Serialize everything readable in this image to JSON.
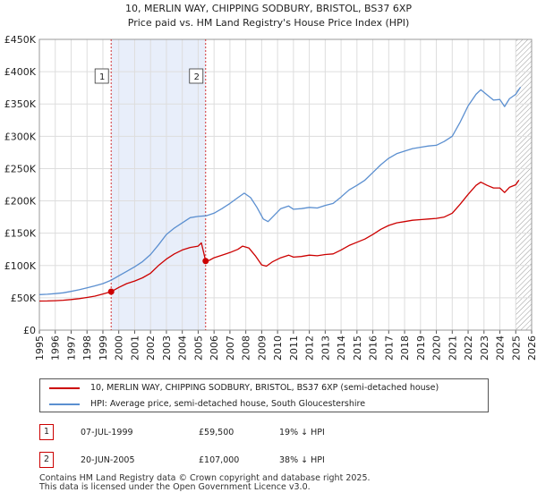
{
  "chart_data": {
    "type": "line",
    "title": "10, MERLIN WAY, CHIPPING SODBURY, BRISTOL, BS37 6XP",
    "subtitle": "Price paid vs. HM Land Registry's House Price Index (HPI)",
    "xlim": [
      1995,
      2026
    ],
    "ylim": [
      0,
      450000
    ],
    "x_ticks": [
      "1995",
      "1996",
      "1997",
      "1998",
      "1999",
      "2000",
      "2001",
      "2002",
      "2003",
      "2004",
      "2005",
      "2006",
      "2007",
      "2008",
      "2009",
      "2010",
      "2011",
      "2012",
      "2013",
      "2014",
      "2015",
      "2016",
      "2017",
      "2018",
      "2019",
      "2020",
      "2021",
      "2022",
      "2023",
      "2024",
      "2025",
      "2026"
    ],
    "y_ticks": [
      {
        "value": 0,
        "label": "£0"
      },
      {
        "value": 50000,
        "label": "£50K"
      },
      {
        "value": 100000,
        "label": "£100K"
      },
      {
        "value": 150000,
        "label": "£150K"
      },
      {
        "value": 200000,
        "label": "£200K"
      },
      {
        "value": 250000,
        "label": "£250K"
      },
      {
        "value": 300000,
        "label": "£300K"
      },
      {
        "value": 350000,
        "label": "£350K"
      },
      {
        "value": 400000,
        "label": "£400K"
      },
      {
        "value": 450000,
        "label": "£450K"
      }
    ],
    "grid": true,
    "shaded_range": [
      1999.52,
      2005.47
    ],
    "future_hatch_from": 2025.0,
    "series": [
      {
        "name": "10, MERLIN WAY, CHIPPING SODBURY, BRISTOL, BS37 6XP (semi-detached house)",
        "color": "#cc0000",
        "points": [
          [
            1995.0,
            45000
          ],
          [
            1995.5,
            45200
          ],
          [
            1996.0,
            45500
          ],
          [
            1996.5,
            46300
          ],
          [
            1997.0,
            47300
          ],
          [
            1997.5,
            48700
          ],
          [
            1998.0,
            50500
          ],
          [
            1998.5,
            52600
          ],
          [
            1999.0,
            56000
          ],
          [
            1999.52,
            59500
          ],
          [
            2000.0,
            66000
          ],
          [
            2000.5,
            72000
          ],
          [
            2001.0,
            76000
          ],
          [
            2001.5,
            81000
          ],
          [
            2002.0,
            88000
          ],
          [
            2002.5,
            100000
          ],
          [
            2003.0,
            110000
          ],
          [
            2003.5,
            118000
          ],
          [
            2004.0,
            124000
          ],
          [
            2004.5,
            128000
          ],
          [
            2005.0,
            130000
          ],
          [
            2005.2,
            135000
          ],
          [
            2005.47,
            107000
          ],
          [
            2005.7,
            108000
          ],
          [
            2006.0,
            112000
          ],
          [
            2006.5,
            116000
          ],
          [
            2007.0,
            120000
          ],
          [
            2007.5,
            125000
          ],
          [
            2007.8,
            130000
          ],
          [
            2008.2,
            127000
          ],
          [
            2008.6,
            115000
          ],
          [
            2009.0,
            101000
          ],
          [
            2009.3,
            99000
          ],
          [
            2009.7,
            106000
          ],
          [
            2010.2,
            112000
          ],
          [
            2010.7,
            116000
          ],
          [
            2011.0,
            113000
          ],
          [
            2011.5,
            114000
          ],
          [
            2012.0,
            116000
          ],
          [
            2012.5,
            115000
          ],
          [
            2013.0,
            117000
          ],
          [
            2013.5,
            118000
          ],
          [
            2014.0,
            124000
          ],
          [
            2014.5,
            131000
          ],
          [
            2015.0,
            136000
          ],
          [
            2015.5,
            141000
          ],
          [
            2016.0,
            148000
          ],
          [
            2016.5,
            156000
          ],
          [
            2017.0,
            162000
          ],
          [
            2017.5,
            166000
          ],
          [
            2018.0,
            168000
          ],
          [
            2018.5,
            170000
          ],
          [
            2019.0,
            171000
          ],
          [
            2019.5,
            172000
          ],
          [
            2020.0,
            173000
          ],
          [
            2020.5,
            175000
          ],
          [
            2021.0,
            181000
          ],
          [
            2021.5,
            195000
          ],
          [
            2022.0,
            210000
          ],
          [
            2022.5,
            224000
          ],
          [
            2022.8,
            229000
          ],
          [
            2023.2,
            224000
          ],
          [
            2023.6,
            220000
          ],
          [
            2024.0,
            220000
          ],
          [
            2024.3,
            213000
          ],
          [
            2024.6,
            221000
          ],
          [
            2025.0,
            225000
          ],
          [
            2025.2,
            232000
          ]
        ]
      },
      {
        "name": "HPI: Average price, semi-detached house, South Gloucestershire",
        "color": "#5b8fd0",
        "points": [
          [
            1995.0,
            55000
          ],
          [
            1995.5,
            55500
          ],
          [
            1996.0,
            56500
          ],
          [
            1996.5,
            57800
          ],
          [
            1997.0,
            60000
          ],
          [
            1997.5,
            62500
          ],
          [
            1998.0,
            65500
          ],
          [
            1998.5,
            68500
          ],
          [
            1999.0,
            72000
          ],
          [
            1999.5,
            77000
          ],
          [
            2000.0,
            84000
          ],
          [
            2000.5,
            91000
          ],
          [
            2001.0,
            98000
          ],
          [
            2001.5,
            106000
          ],
          [
            2002.0,
            117000
          ],
          [
            2002.5,
            132000
          ],
          [
            2003.0,
            148000
          ],
          [
            2003.5,
            158000
          ],
          [
            2004.0,
            166000
          ],
          [
            2004.5,
            174000
          ],
          [
            2005.0,
            176000
          ],
          [
            2005.5,
            177000
          ],
          [
            2006.0,
            181000
          ],
          [
            2006.5,
            188000
          ],
          [
            2007.0,
            196000
          ],
          [
            2007.5,
            205000
          ],
          [
            2007.9,
            212000
          ],
          [
            2008.3,
            205000
          ],
          [
            2008.7,
            190000
          ],
          [
            2009.1,
            172000
          ],
          [
            2009.4,
            168000
          ],
          [
            2009.8,
            178000
          ],
          [
            2010.2,
            188000
          ],
          [
            2010.7,
            192000
          ],
          [
            2011.0,
            187000
          ],
          [
            2011.5,
            188000
          ],
          [
            2012.0,
            190000
          ],
          [
            2012.5,
            189000
          ],
          [
            2013.0,
            193000
          ],
          [
            2013.5,
            196000
          ],
          [
            2014.0,
            206000
          ],
          [
            2014.5,
            217000
          ],
          [
            2015.0,
            224000
          ],
          [
            2015.5,
            232000
          ],
          [
            2016.0,
            244000
          ],
          [
            2016.5,
            256000
          ],
          [
            2017.0,
            266000
          ],
          [
            2017.5,
            273000
          ],
          [
            2018.0,
            277000
          ],
          [
            2018.5,
            281000
          ],
          [
            2019.0,
            283000
          ],
          [
            2019.5,
            285000
          ],
          [
            2020.0,
            286000
          ],
          [
            2020.5,
            292000
          ],
          [
            2021.0,
            300000
          ],
          [
            2021.5,
            322000
          ],
          [
            2022.0,
            347000
          ],
          [
            2022.5,
            365000
          ],
          [
            2022.8,
            372000
          ],
          [
            2023.2,
            364000
          ],
          [
            2023.6,
            356000
          ],
          [
            2024.0,
            357000
          ],
          [
            2024.3,
            346000
          ],
          [
            2024.6,
            358000
          ],
          [
            2025.0,
            365000
          ],
          [
            2025.3,
            376000
          ]
        ]
      }
    ],
    "annotations": [
      {
        "label": "1",
        "x": 1999.52,
        "value": 59500
      },
      {
        "label": "2",
        "x": 2005.47,
        "value": 107000
      }
    ]
  },
  "legend": {
    "property_label": "10, MERLIN WAY, CHIPPING SODBURY, BRISTOL, BS37 6XP (semi-detached house)",
    "hpi_label": "HPI: Average price, semi-detached house, South Gloucestershire",
    "property_color": "#cc0000",
    "hpi_color": "#5b8fd0"
  },
  "transactions": [
    {
      "num": "1",
      "date": "07-JUL-1999",
      "price": "£59,500",
      "hpi": "19% ↓ HPI"
    },
    {
      "num": "2",
      "date": "20-JUN-2005",
      "price": "£107,000",
      "hpi": "38% ↓ HPI"
    }
  ],
  "footer": {
    "line1": "Contains HM Land Registry data © Crown copyright and database right 2025.",
    "line2": "This data is licensed under the Open Government Licence v3.0."
  }
}
